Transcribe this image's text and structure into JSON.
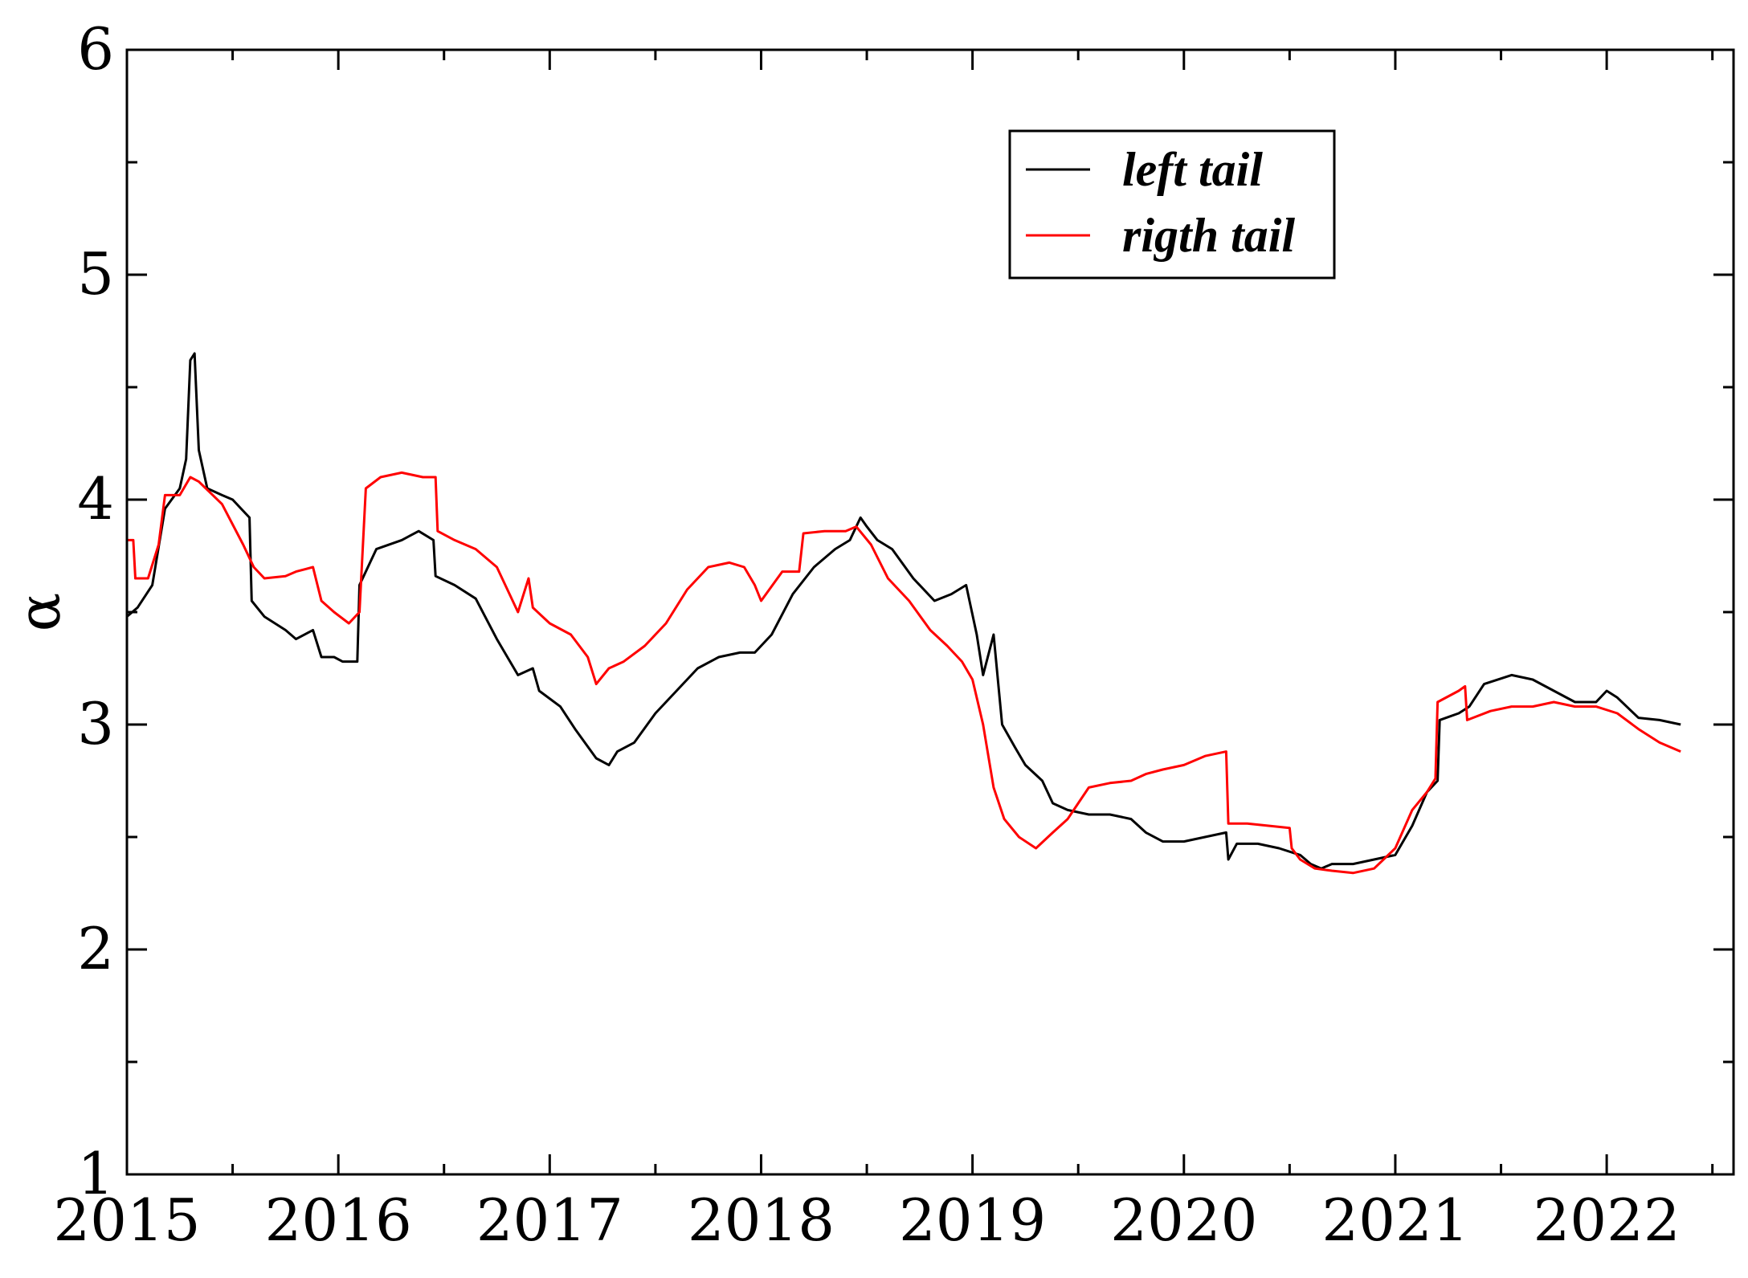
{
  "chart_data": {
    "type": "line",
    "title": "",
    "xlabel": "",
    "ylabel": "α",
    "xlim": [
      2015,
      2022.6
    ],
    "ylim": [
      1,
      6
    ],
    "x_ticks": [
      "2015",
      "2016",
      "2017",
      "2018",
      "2019",
      "2020",
      "2021",
      "2022"
    ],
    "y_ticks": [
      "1",
      "2",
      "3",
      "4",
      "5",
      "6"
    ],
    "grid": false,
    "legend_position": "top-right",
    "series": [
      {
        "name": "left tail",
        "color": "#000000",
        "points": [
          [
            2015.0,
            3.48
          ],
          [
            2015.05,
            3.52
          ],
          [
            2015.12,
            3.62
          ],
          [
            2015.18,
            3.96
          ],
          [
            2015.25,
            4.05
          ],
          [
            2015.28,
            4.18
          ],
          [
            2015.3,
            4.62
          ],
          [
            2015.32,
            4.65
          ],
          [
            2015.34,
            4.22
          ],
          [
            2015.38,
            4.05
          ],
          [
            2015.45,
            4.02
          ],
          [
            2015.5,
            4.0
          ],
          [
            2015.55,
            3.95
          ],
          [
            2015.58,
            3.92
          ],
          [
            2015.59,
            3.55
          ],
          [
            2015.65,
            3.48
          ],
          [
            2015.75,
            3.42
          ],
          [
            2015.8,
            3.38
          ],
          [
            2015.88,
            3.42
          ],
          [
            2015.92,
            3.3
          ],
          [
            2015.98,
            3.3
          ],
          [
            2016.02,
            3.28
          ],
          [
            2016.09,
            3.28
          ],
          [
            2016.1,
            3.62
          ],
          [
            2016.18,
            3.78
          ],
          [
            2016.3,
            3.82
          ],
          [
            2016.38,
            3.86
          ],
          [
            2016.45,
            3.82
          ],
          [
            2016.46,
            3.66
          ],
          [
            2016.55,
            3.62
          ],
          [
            2016.65,
            3.56
          ],
          [
            2016.75,
            3.38
          ],
          [
            2016.85,
            3.22
          ],
          [
            2016.92,
            3.25
          ],
          [
            2016.95,
            3.15
          ],
          [
            2017.05,
            3.08
          ],
          [
            2017.12,
            2.98
          ],
          [
            2017.22,
            2.85
          ],
          [
            2017.28,
            2.82
          ],
          [
            2017.32,
            2.88
          ],
          [
            2017.4,
            2.92
          ],
          [
            2017.5,
            3.05
          ],
          [
            2017.6,
            3.15
          ],
          [
            2017.7,
            3.25
          ],
          [
            2017.8,
            3.3
          ],
          [
            2017.9,
            3.32
          ],
          [
            2017.97,
            3.32
          ],
          [
            2018.05,
            3.4
          ],
          [
            2018.15,
            3.58
          ],
          [
            2018.25,
            3.7
          ],
          [
            2018.35,
            3.78
          ],
          [
            2018.42,
            3.82
          ],
          [
            2018.47,
            3.92
          ],
          [
            2018.5,
            3.88
          ],
          [
            2018.55,
            3.82
          ],
          [
            2018.62,
            3.78
          ],
          [
            2018.72,
            3.65
          ],
          [
            2018.82,
            3.55
          ],
          [
            2018.9,
            3.58
          ],
          [
            2018.97,
            3.62
          ],
          [
            2019.02,
            3.4
          ],
          [
            2019.05,
            3.22
          ],
          [
            2019.1,
            3.4
          ],
          [
            2019.14,
            3.0
          ],
          [
            2019.2,
            2.9
          ],
          [
            2019.25,
            2.82
          ],
          [
            2019.33,
            2.75
          ],
          [
            2019.38,
            2.65
          ],
          [
            2019.45,
            2.62
          ],
          [
            2019.55,
            2.6
          ],
          [
            2019.65,
            2.6
          ],
          [
            2019.75,
            2.58
          ],
          [
            2019.82,
            2.52
          ],
          [
            2019.9,
            2.48
          ],
          [
            2020.0,
            2.48
          ],
          [
            2020.1,
            2.5
          ],
          [
            2020.2,
            2.52
          ],
          [
            2020.21,
            2.4
          ],
          [
            2020.25,
            2.47
          ],
          [
            2020.35,
            2.47
          ],
          [
            2020.45,
            2.45
          ],
          [
            2020.55,
            2.42
          ],
          [
            2020.6,
            2.38
          ],
          [
            2020.65,
            2.36
          ],
          [
            2020.7,
            2.38
          ],
          [
            2020.8,
            2.38
          ],
          [
            2020.9,
            2.4
          ],
          [
            2021.0,
            2.42
          ],
          [
            2021.08,
            2.55
          ],
          [
            2021.15,
            2.7
          ],
          [
            2021.2,
            2.75
          ],
          [
            2021.21,
            3.02
          ],
          [
            2021.3,
            3.05
          ],
          [
            2021.35,
            3.08
          ],
          [
            2021.42,
            3.18
          ],
          [
            2021.55,
            3.22
          ],
          [
            2021.65,
            3.2
          ],
          [
            2021.75,
            3.15
          ],
          [
            2021.85,
            3.1
          ],
          [
            2021.95,
            3.1
          ],
          [
            2022.0,
            3.15
          ],
          [
            2022.05,
            3.12
          ],
          [
            2022.15,
            3.03
          ],
          [
            2022.25,
            3.02
          ],
          [
            2022.35,
            3.0
          ]
        ]
      },
      {
        "name": "rigth tail",
        "color": "#ff0000",
        "points": [
          [
            2015.0,
            3.82
          ],
          [
            2015.03,
            3.82
          ],
          [
            2015.04,
            3.65
          ],
          [
            2015.1,
            3.65
          ],
          [
            2015.15,
            3.8
          ],
          [
            2015.18,
            4.02
          ],
          [
            2015.25,
            4.02
          ],
          [
            2015.3,
            4.1
          ],
          [
            2015.34,
            4.08
          ],
          [
            2015.45,
            3.98
          ],
          [
            2015.55,
            3.8
          ],
          [
            2015.6,
            3.7
          ],
          [
            2015.65,
            3.65
          ],
          [
            2015.75,
            3.66
          ],
          [
            2015.8,
            3.68
          ],
          [
            2015.88,
            3.7
          ],
          [
            2015.92,
            3.55
          ],
          [
            2015.98,
            3.5
          ],
          [
            2016.05,
            3.45
          ],
          [
            2016.1,
            3.5
          ],
          [
            2016.13,
            4.05
          ],
          [
            2016.2,
            4.1
          ],
          [
            2016.3,
            4.12
          ],
          [
            2016.4,
            4.1
          ],
          [
            2016.46,
            4.1
          ],
          [
            2016.47,
            3.86
          ],
          [
            2016.55,
            3.82
          ],
          [
            2016.65,
            3.78
          ],
          [
            2016.75,
            3.7
          ],
          [
            2016.85,
            3.5
          ],
          [
            2016.9,
            3.65
          ],
          [
            2016.92,
            3.52
          ],
          [
            2017.0,
            3.45
          ],
          [
            2017.1,
            3.4
          ],
          [
            2017.18,
            3.3
          ],
          [
            2017.22,
            3.18
          ],
          [
            2017.28,
            3.25
          ],
          [
            2017.35,
            3.28
          ],
          [
            2017.45,
            3.35
          ],
          [
            2017.55,
            3.45
          ],
          [
            2017.65,
            3.6
          ],
          [
            2017.75,
            3.7
          ],
          [
            2017.85,
            3.72
          ],
          [
            2017.92,
            3.7
          ],
          [
            2017.97,
            3.62
          ],
          [
            2018.0,
            3.55
          ],
          [
            2018.1,
            3.68
          ],
          [
            2018.18,
            3.68
          ],
          [
            2018.2,
            3.85
          ],
          [
            2018.3,
            3.86
          ],
          [
            2018.4,
            3.86
          ],
          [
            2018.45,
            3.88
          ],
          [
            2018.52,
            3.8
          ],
          [
            2018.6,
            3.65
          ],
          [
            2018.7,
            3.55
          ],
          [
            2018.8,
            3.42
          ],
          [
            2018.88,
            3.35
          ],
          [
            2018.95,
            3.28
          ],
          [
            2019.0,
            3.2
          ],
          [
            2019.05,
            3.0
          ],
          [
            2019.1,
            2.72
          ],
          [
            2019.15,
            2.58
          ],
          [
            2019.22,
            2.5
          ],
          [
            2019.3,
            2.45
          ],
          [
            2019.38,
            2.52
          ],
          [
            2019.45,
            2.58
          ],
          [
            2019.5,
            2.65
          ],
          [
            2019.55,
            2.72
          ],
          [
            2019.65,
            2.74
          ],
          [
            2019.75,
            2.75
          ],
          [
            2019.82,
            2.78
          ],
          [
            2019.9,
            2.8
          ],
          [
            2020.0,
            2.82
          ],
          [
            2020.1,
            2.86
          ],
          [
            2020.2,
            2.88
          ],
          [
            2020.21,
            2.56
          ],
          [
            2020.3,
            2.56
          ],
          [
            2020.4,
            2.55
          ],
          [
            2020.5,
            2.54
          ],
          [
            2020.51,
            2.45
          ],
          [
            2020.55,
            2.4
          ],
          [
            2020.62,
            2.36
          ],
          [
            2020.7,
            2.35
          ],
          [
            2020.8,
            2.34
          ],
          [
            2020.9,
            2.36
          ],
          [
            2021.0,
            2.45
          ],
          [
            2021.08,
            2.62
          ],
          [
            2021.15,
            2.7
          ],
          [
            2021.19,
            2.76
          ],
          [
            2021.2,
            3.1
          ],
          [
            2021.3,
            3.15
          ],
          [
            2021.33,
            3.17
          ],
          [
            2021.34,
            3.02
          ],
          [
            2021.45,
            3.06
          ],
          [
            2021.55,
            3.08
          ],
          [
            2021.65,
            3.08
          ],
          [
            2021.75,
            3.1
          ],
          [
            2021.85,
            3.08
          ],
          [
            2021.95,
            3.08
          ],
          [
            2022.05,
            3.05
          ],
          [
            2022.15,
            2.98
          ],
          [
            2022.25,
            2.92
          ],
          [
            2022.35,
            2.88
          ]
        ]
      }
    ]
  }
}
